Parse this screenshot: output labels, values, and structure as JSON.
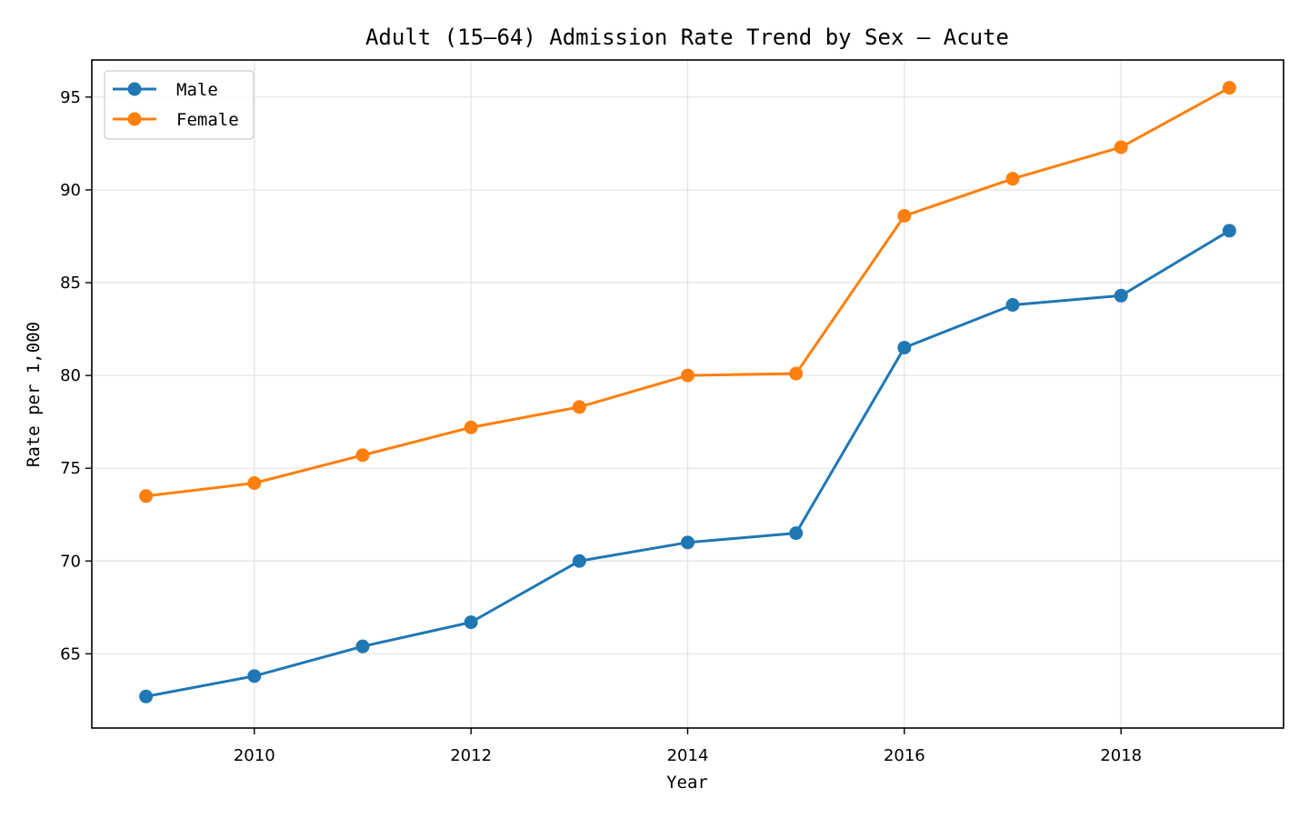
{
  "chart_data": {
    "type": "line",
    "title": "Adult (15–64) Admission Rate Trend by Sex — Acute",
    "xlabel": "Year",
    "ylabel": "Rate per 1,000",
    "x": [
      2009,
      2010,
      2011,
      2012,
      2013,
      2014,
      2015,
      2016,
      2017,
      2018,
      2019
    ],
    "xlim": [
      2008.5,
      2019.5
    ],
    "ylim": [
      61.0,
      97.0
    ],
    "xticks": [
      2010,
      2012,
      2014,
      2016,
      2018
    ],
    "yticks": [
      65,
      70,
      75,
      80,
      85,
      90,
      95
    ],
    "grid": true,
    "legend_position": "top-left",
    "series": [
      {
        "name": "Male",
        "color": "#1f77b4",
        "values": [
          62.7,
          63.8,
          65.4,
          66.7,
          70.0,
          71.0,
          71.5,
          81.5,
          83.8,
          84.3,
          87.8
        ]
      },
      {
        "name": "Female",
        "color": "#ff7f0e",
        "values": [
          73.5,
          74.2,
          75.7,
          77.2,
          78.3,
          80.0,
          80.1,
          88.6,
          90.6,
          92.3,
          95.5
        ]
      }
    ]
  }
}
